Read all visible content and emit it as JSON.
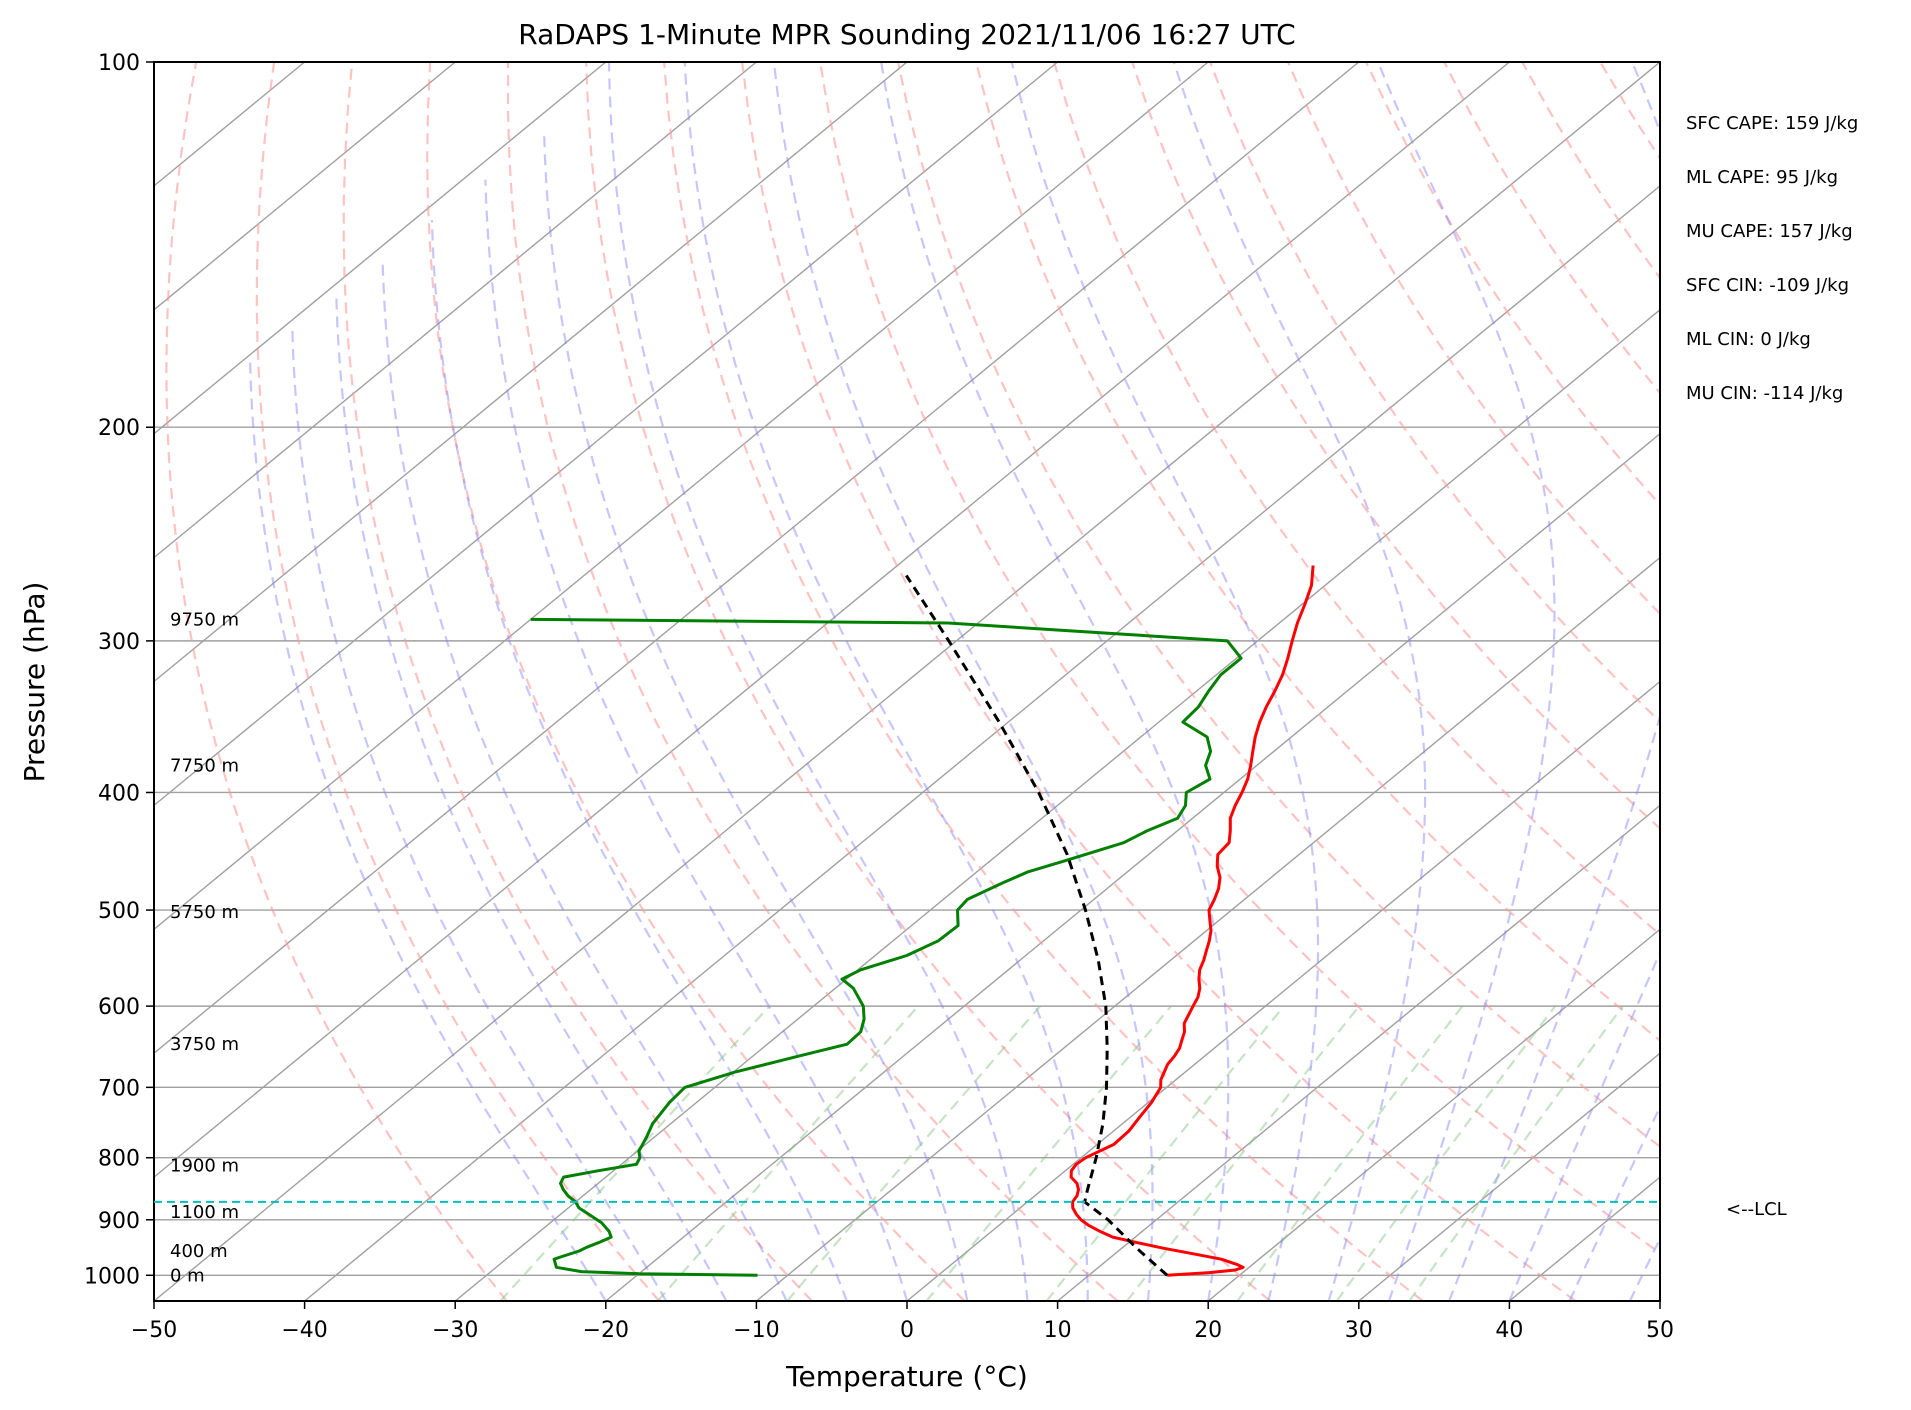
{
  "chart_data": {
    "type": "line",
    "title": "RaDAPS 1-Minute MPR Sounding 2021/11/06 16:27 UTC",
    "xlabel": "Temperature (°C)",
    "ylabel": "Pressure (hPa)",
    "xlim": [
      -50,
      50
    ],
    "ylim": [
      1050,
      100
    ],
    "y_scale": "log",
    "skew": true,
    "x_ticks": [
      "−50",
      "−40",
      "−30",
      "−20",
      "−10",
      "0",
      "10",
      "20",
      "30",
      "40",
      "50"
    ],
    "y_ticks": [
      "100",
      "200",
      "300",
      "400",
      "500",
      "600",
      "700",
      "800",
      "900",
      "1000"
    ],
    "grid": true,
    "series": [
      {
        "color": "#ff0000",
        "points": [
          [
            1000,
            15.2
          ],
          [
            995,
            17.8
          ],
          [
            990,
            19.3
          ],
          [
            985,
            19.6
          ],
          [
            980,
            19.0
          ],
          [
            970,
            17.5
          ],
          [
            960,
            15.2
          ],
          [
            950,
            12.8
          ],
          [
            940,
            10.6
          ],
          [
            930,
            8.5
          ],
          [
            920,
            7.2
          ],
          [
            910,
            6.0
          ],
          [
            900,
            5.0
          ],
          [
            890,
            4.2
          ],
          [
            880,
            3.5
          ],
          [
            870,
            3.0
          ],
          [
            860,
            2.8
          ],
          [
            850,
            2.4
          ],
          [
            840,
            1.8
          ],
          [
            830,
            0.9
          ],
          [
            820,
            0.4
          ],
          [
            810,
            0.2
          ],
          [
            800,
            0.3
          ],
          [
            780,
            1.1
          ],
          [
            760,
            1.0
          ],
          [
            740,
            0.6
          ],
          [
            720,
            0.2
          ],
          [
            700,
            -0.4
          ],
          [
            690,
            -1.0
          ],
          [
            680,
            -1.4
          ],
          [
            670,
            -1.8
          ],
          [
            660,
            -2.0
          ],
          [
            650,
            -2.3
          ],
          [
            640,
            -2.8
          ],
          [
            630,
            -3.3
          ],
          [
            620,
            -4.0
          ],
          [
            610,
            -4.4
          ],
          [
            600,
            -4.8
          ],
          [
            590,
            -5.2
          ],
          [
            580,
            -5.8
          ],
          [
            570,
            -6.6
          ],
          [
            560,
            -7.3
          ],
          [
            550,
            -7.8
          ],
          [
            540,
            -8.4
          ],
          [
            530,
            -9.0
          ],
          [
            520,
            -9.7
          ],
          [
            510,
            -10.6
          ],
          [
            500,
            -11.5
          ],
          [
            490,
            -12.0
          ],
          [
            480,
            -12.6
          ],
          [
            470,
            -13.4
          ],
          [
            460,
            -14.5
          ],
          [
            450,
            -15.4
          ],
          [
            440,
            -15.6
          ],
          [
            430,
            -16.5
          ],
          [
            420,
            -17.5
          ],
          [
            410,
            -18.2
          ],
          [
            400,
            -18.8
          ],
          [
            390,
            -19.5
          ],
          [
            380,
            -20.4
          ],
          [
            370,
            -21.4
          ],
          [
            360,
            -22.4
          ],
          [
            350,
            -23.3
          ],
          [
            340,
            -24.1
          ],
          [
            330,
            -24.8
          ],
          [
            320,
            -25.6
          ],
          [
            310,
            -26.6
          ],
          [
            300,
            -27.7
          ],
          [
            290,
            -28.8
          ],
          [
            280,
            -29.8
          ],
          [
            270,
            -30.9
          ],
          [
            260,
            -32.4
          ]
        ]
      },
      {
        "color": "#008000",
        "points": [
          [
            1000,
            -12.0
          ],
          [
            997,
            -20.0
          ],
          [
            993,
            -24.0
          ],
          [
            985,
            -26.0
          ],
          [
            970,
            -26.8
          ],
          [
            965,
            -26.5
          ],
          [
            955,
            -25.8
          ],
          [
            948,
            -25.6
          ],
          [
            940,
            -25.2
          ],
          [
            930,
            -24.8
          ],
          [
            920,
            -25.4
          ],
          [
            905,
            -26.6
          ],
          [
            890,
            -28.2
          ],
          [
            880,
            -29.3
          ],
          [
            870,
            -30.0
          ],
          [
            860,
            -31.0
          ],
          [
            850,
            -31.8
          ],
          [
            840,
            -32.5
          ],
          [
            830,
            -32.8
          ],
          [
            820,
            -31.0
          ],
          [
            810,
            -29.0
          ],
          [
            800,
            -29.3
          ],
          [
            790,
            -29.9
          ],
          [
            770,
            -30.5
          ],
          [
            750,
            -31.2
          ],
          [
            720,
            -31.8
          ],
          [
            700,
            -32.0
          ],
          [
            680,
            -29.9
          ],
          [
            660,
            -27.0
          ],
          [
            645,
            -24.7
          ],
          [
            630,
            -24.8
          ],
          [
            615,
            -25.6
          ],
          [
            600,
            -26.7
          ],
          [
            580,
            -28.8
          ],
          [
            570,
            -30.3
          ],
          [
            560,
            -29.8
          ],
          [
            545,
            -27.9
          ],
          [
            530,
            -27.0
          ],
          [
            515,
            -26.9
          ],
          [
            500,
            -28.2
          ],
          [
            490,
            -28.4
          ],
          [
            475,
            -27.4
          ],
          [
            465,
            -26.6
          ],
          [
            455,
            -25.0
          ],
          [
            440,
            -22.6
          ],
          [
            430,
            -22.0
          ],
          [
            420,
            -21.0
          ],
          [
            410,
            -21.5
          ],
          [
            400,
            -22.5
          ],
          [
            390,
            -22.0
          ],
          [
            380,
            -23.4
          ],
          [
            370,
            -24.2
          ],
          [
            360,
            -25.6
          ],
          [
            350,
            -28.4
          ],
          [
            340,
            -28.6
          ],
          [
            330,
            -29.2
          ],
          [
            320,
            -29.7
          ],
          [
            310,
            -29.7
          ],
          [
            300,
            -32.0
          ],
          [
            290,
            -52.0
          ],
          [
            288,
            -80.0
          ]
        ]
      },
      {
        "color": "#000000",
        "dashed": true,
        "points": [
          [
            1000,
            15.2
          ],
          [
            950,
            11.0
          ],
          [
            900,
            6.8
          ],
          [
            870,
            3.8
          ],
          [
            850,
            3.0
          ],
          [
            800,
            1.0
          ],
          [
            750,
            -1.3
          ],
          [
            700,
            -4.0
          ],
          [
            650,
            -7.1
          ],
          [
            600,
            -10.6
          ],
          [
            550,
            -14.8
          ],
          [
            500,
            -19.7
          ],
          [
            450,
            -25.4
          ],
          [
            400,
            -32.3
          ],
          [
            350,
            -40.6
          ],
          [
            300,
            -50.5
          ],
          [
            265,
            -58.6
          ]
        ]
      }
    ],
    "lcl_pressure": 870,
    "lcl_label": "<--LCL",
    "height_labels": [
      {
        "label": "0 m",
        "p": 1000
      },
      {
        "label": "400 m",
        "p": 955
      },
      {
        "label": "1100 m",
        "p": 887
      },
      {
        "label": "1900 m",
        "p": 812
      },
      {
        "label": "3750 m",
        "p": 645
      },
      {
        "label": "5750 m",
        "p": 502
      },
      {
        "label": "7750 m",
        "p": 380
      },
      {
        "label": "9750 m",
        "p": 288
      }
    ],
    "stats": [
      "SFC CAPE: 159 J/kg",
      "ML CAPE: 95 J/kg",
      "MU CAPE: 157 J/kg",
      "SFC CIN: -109 J/kg",
      "ML CIN: 0 J/kg",
      "MU CIN: -114 J/kg"
    ],
    "colors": {
      "isotherm": "#a0a0a0",
      "dry_adiabat": "#ff9999",
      "moist_adiabat": "#8080ff",
      "mixing_ratio": "#80c080",
      "lcl": "#00bfbf"
    }
  }
}
